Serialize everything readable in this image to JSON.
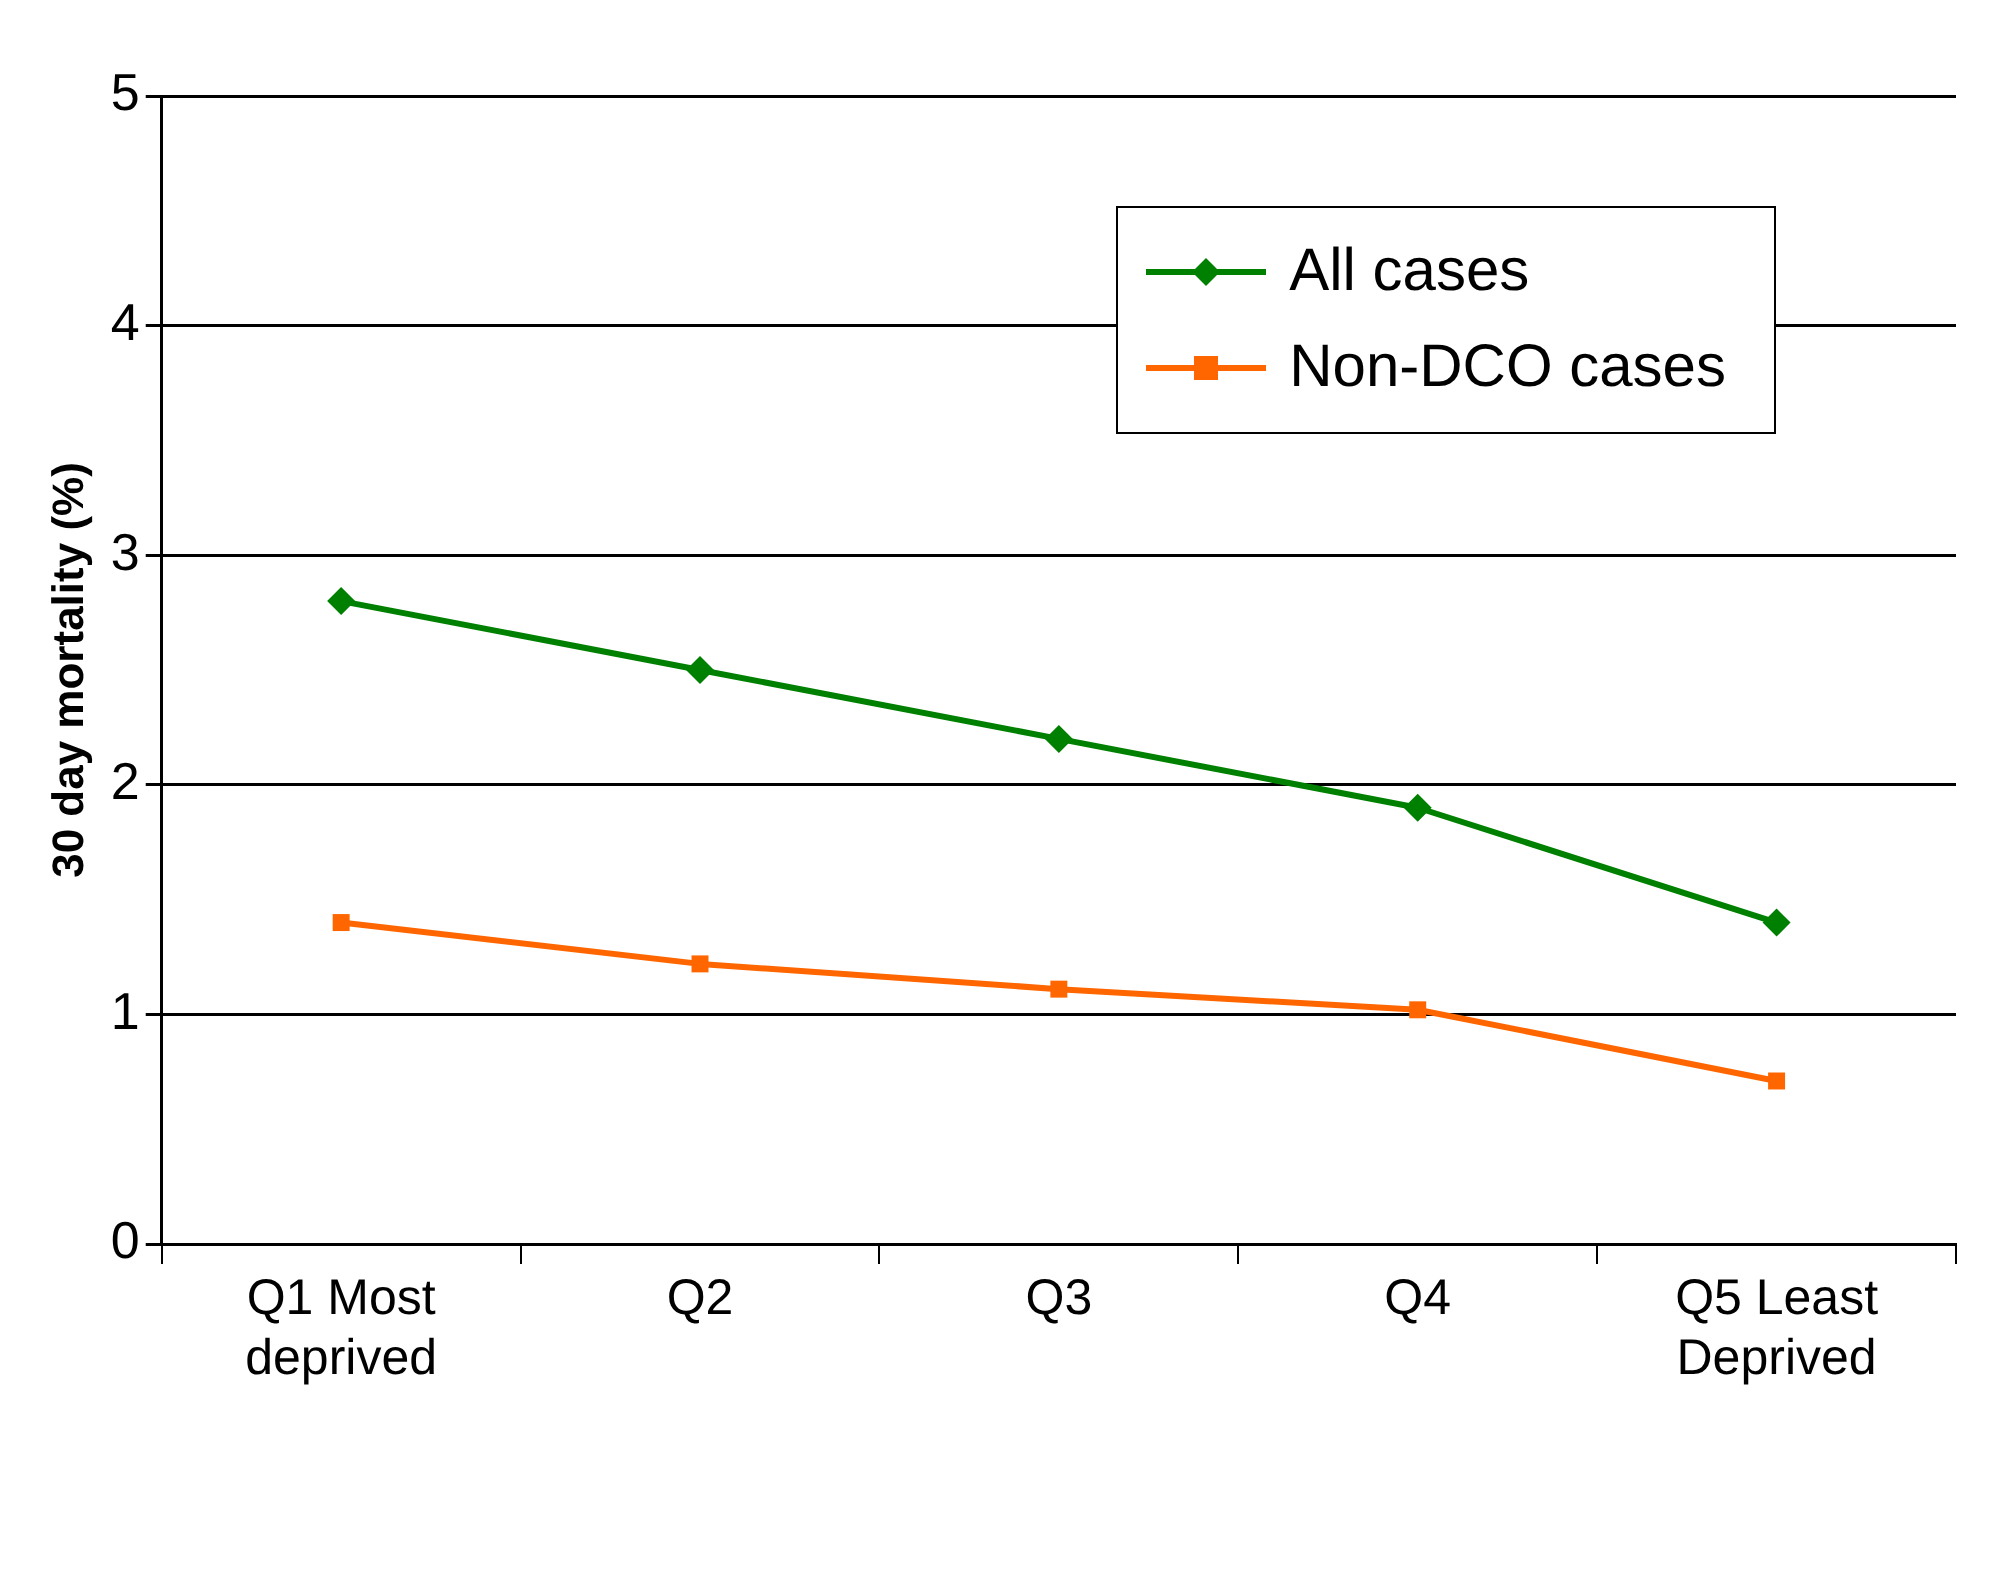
{
  "chart_data": {
    "type": "line",
    "ylabel": "30 day mortality (%)",
    "categories": [
      "Q1 Most deprived",
      "Q2",
      "Q3",
      "Q4",
      "Q5 Least Deprived"
    ],
    "series": [
      {
        "name": "All cases",
        "color": "#008000",
        "marker": "diamond",
        "values": [
          2.8,
          2.5,
          2.2,
          1.9,
          1.4
        ]
      },
      {
        "name": "Non-DCO cases",
        "color": "#ff6600",
        "marker": "square",
        "values": [
          1.4,
          1.22,
          1.11,
          1.02,
          0.71
        ]
      }
    ],
    "ylim": [
      0,
      5
    ],
    "yticks": [
      0,
      1,
      2,
      3,
      4,
      5
    ],
    "grid": "y",
    "legend": "top right"
  }
}
